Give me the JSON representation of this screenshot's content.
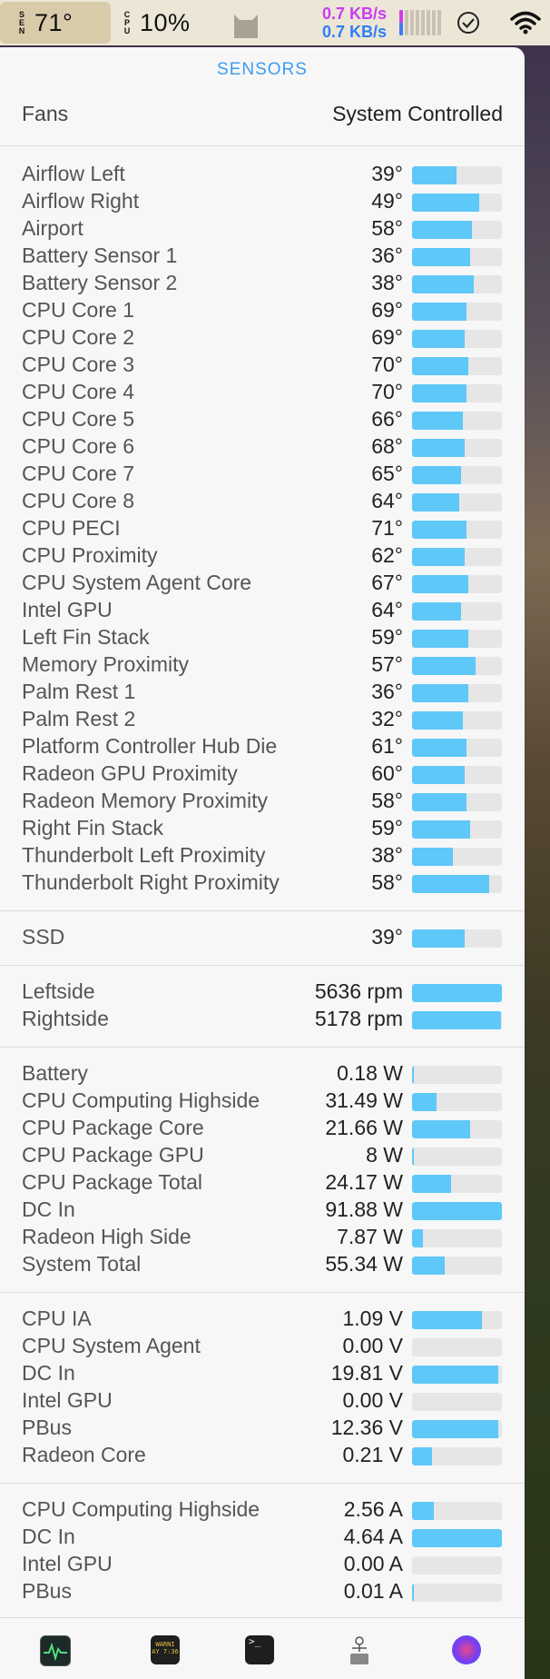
{
  "menubar": {
    "sensor_stack": "SEN",
    "temp": "71°",
    "cpu_stack": "CPU",
    "cpu": "10%",
    "net_up": "0.7 KB/s",
    "net_down": "0.7 KB/s",
    "icons": [
      "cat-icon",
      "activity-bars-icon",
      "checkmark-circle-icon",
      "wifi-icon"
    ]
  },
  "panel": {
    "title": "SENSORS",
    "fans_label": "Fans",
    "fans_value": "System Controlled",
    "bar_color": "#5ec8f8",
    "temperatures": [
      {
        "name": "Airflow Left",
        "value": "39°",
        "level": 0.49
      },
      {
        "name": "Airflow Right",
        "value": "49°",
        "level": 0.75
      },
      {
        "name": "Airport",
        "value": "58°",
        "level": 0.67
      },
      {
        "name": "Battery Sensor 1",
        "value": "36°",
        "level": 0.65
      },
      {
        "name": "Battery Sensor 2",
        "value": "38°",
        "level": 0.69
      },
      {
        "name": "CPU Core 1",
        "value": "69°",
        "level": 0.61
      },
      {
        "name": "CPU Core 2",
        "value": "69°",
        "level": 0.59
      },
      {
        "name": "CPU Core 3",
        "value": "70°",
        "level": 0.63
      },
      {
        "name": "CPU Core 4",
        "value": "70°",
        "level": 0.61
      },
      {
        "name": "CPU Core 5",
        "value": "66°",
        "level": 0.57
      },
      {
        "name": "CPU Core 6",
        "value": "68°",
        "level": 0.59
      },
      {
        "name": "CPU Core 7",
        "value": "65°",
        "level": 0.55
      },
      {
        "name": "CPU Core 8",
        "value": "64°",
        "level": 0.53
      },
      {
        "name": "CPU PECI",
        "value": "71°",
        "level": 0.61
      },
      {
        "name": "CPU Proximity",
        "value": "62°",
        "level": 0.59
      },
      {
        "name": "CPU System Agent Core",
        "value": "67°",
        "level": 0.63
      },
      {
        "name": "Intel GPU",
        "value": "64°",
        "level": 0.55
      },
      {
        "name": "Left Fin Stack",
        "value": "59°",
        "level": 0.63
      },
      {
        "name": "Memory Proximity",
        "value": "57°",
        "level": 0.71
      },
      {
        "name": "Palm Rest 1",
        "value": "36°",
        "level": 0.63
      },
      {
        "name": "Palm Rest 2",
        "value": "32°",
        "level": 0.57
      },
      {
        "name": "Platform Controller Hub Die",
        "value": "61°",
        "level": 0.61
      },
      {
        "name": "Radeon GPU Proximity",
        "value": "60°",
        "level": 0.59
      },
      {
        "name": "Radeon Memory Proximity",
        "value": "58°",
        "level": 0.61
      },
      {
        "name": "Right Fin Stack",
        "value": "59°",
        "level": 0.65
      },
      {
        "name": "Thunderbolt Left Proximity",
        "value": "38°",
        "level": 0.45
      },
      {
        "name": "Thunderbolt Right Proximity",
        "value": "58°",
        "level": 0.86
      }
    ],
    "disks": [
      {
        "name": "SSD",
        "value": "39°",
        "level": 0.59
      }
    ],
    "fans": [
      {
        "name": "Leftside",
        "value": "5636 rpm",
        "level": 1.0
      },
      {
        "name": "Rightside",
        "value": "5178 rpm",
        "level": 0.99
      }
    ],
    "power": [
      {
        "name": "Battery",
        "value": "0.18 W",
        "level": 0.02
      },
      {
        "name": "CPU Computing Highside",
        "value": "31.49 W",
        "level": 0.27
      },
      {
        "name": "CPU Package Core",
        "value": "21.66 W",
        "level": 0.65
      },
      {
        "name": "CPU Package GPU",
        "value": "8 W",
        "level": 0.02
      },
      {
        "name": "CPU Package Total",
        "value": "24.17 W",
        "level": 0.43
      },
      {
        "name": "DC In",
        "value": "91.88 W",
        "level": 1.0
      },
      {
        "name": "Radeon High Side",
        "value": "7.87 W",
        "level": 0.12
      },
      {
        "name": "System Total",
        "value": "55.34 W",
        "level": 0.36
      }
    ],
    "voltage": [
      {
        "name": "CPU IA",
        "value": "1.09 V",
        "level": 0.78
      },
      {
        "name": "CPU System Agent",
        "value": "0.00 V",
        "level": 0.0
      },
      {
        "name": "DC In",
        "value": "19.81 V",
        "level": 0.96
      },
      {
        "name": "Intel GPU",
        "value": "0.00 V",
        "level": 0.0
      },
      {
        "name": "PBus",
        "value": "12.36 V",
        "level": 0.96
      },
      {
        "name": "Radeon Core",
        "value": "0.21 V",
        "level": 0.22
      }
    ],
    "current": [
      {
        "name": "CPU Computing Highside",
        "value": "2.56 A",
        "level": 0.24
      },
      {
        "name": "DC In",
        "value": "4.64 A",
        "level": 1.0
      },
      {
        "name": "Intel GPU",
        "value": "0.00 A",
        "level": 0.0
      },
      {
        "name": "PBus",
        "value": "0.01 A",
        "level": 0.02
      }
    ]
  },
  "dock": {
    "console_label": "WARNI\nAY 7:36",
    "terminal_label": ">_",
    "icons": [
      "activity-monitor-icon",
      "console-icon",
      "terminal-icon",
      "system-info-icon",
      "istat-icon"
    ]
  }
}
